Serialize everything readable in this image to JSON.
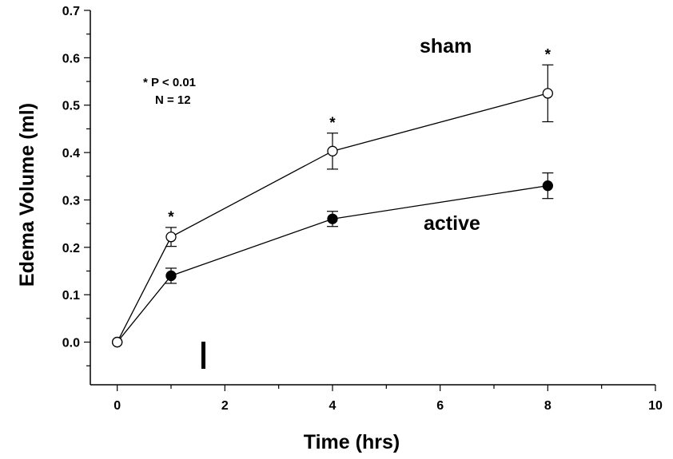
{
  "chart_data": {
    "type": "line",
    "xlabel": "Time (hrs)",
    "ylabel": "Edema Volume (ml)",
    "xlim": [
      -0.5,
      10
    ],
    "ylim": [
      -0.09,
      0.7
    ],
    "x_ticks": [
      "0",
      "2",
      "4",
      "6",
      "8",
      "10"
    ],
    "x_tick_values": [
      0,
      2,
      4,
      6,
      8,
      10
    ],
    "y_ticks": [
      "0.0",
      "0.1",
      "0.2",
      "0.3",
      "0.4",
      "0.5",
      "0.6",
      "0.7"
    ],
    "y_tick_values": [
      0.0,
      0.1,
      0.2,
      0.3,
      0.4,
      0.5,
      0.6,
      0.7
    ],
    "grid": false,
    "series": [
      {
        "name": "sham",
        "marker": "open-circle",
        "color": "#000000",
        "x": [
          0,
          1,
          4,
          8
        ],
        "y": [
          0.0,
          0.222,
          0.403,
          0.525
        ],
        "error": [
          0.0,
          0.02,
          0.038,
          0.06
        ]
      },
      {
        "name": "active",
        "marker": "filled-circle",
        "color": "#000000",
        "x": [
          0,
          1,
          4,
          8
        ],
        "y": [
          0.0,
          0.14,
          0.26,
          0.33
        ],
        "error": [
          0.0,
          0.016,
          0.016,
          0.027
        ]
      }
    ],
    "significance_markers": {
      "symbol": "*",
      "x": [
        1,
        4,
        8
      ]
    },
    "annotations": {
      "stats_line1": "* P < 0.01",
      "stats_line2": "N = 12"
    }
  }
}
